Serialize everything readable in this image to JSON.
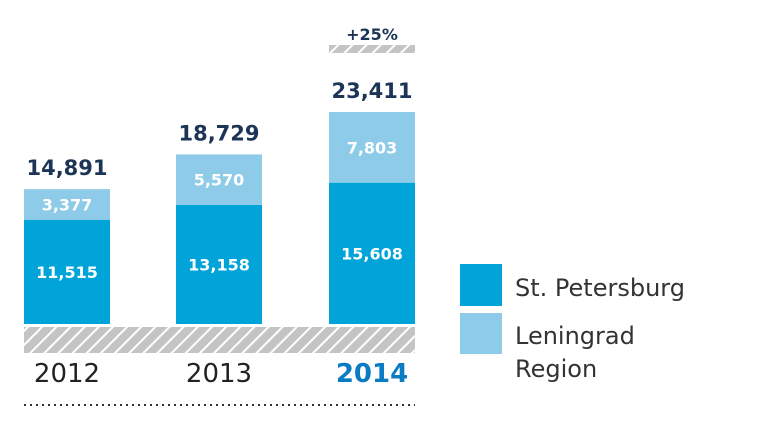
{
  "chart_data": {
    "type": "bar",
    "stacked": true,
    "title": "",
    "xlabel": "",
    "ylabel": "",
    "categories": [
      "2012",
      "2013",
      "2014"
    ],
    "highlight_category": "2014",
    "series": [
      {
        "name": "St. Petersburg",
        "color": "#00a4d8",
        "values": [
          11515,
          13158,
          15608
        ],
        "labels": [
          "11,515",
          "13,158",
          "15,608"
        ]
      },
      {
        "name": "Leningrad Region",
        "color": "#8dcbe9",
        "values": [
          3377,
          5570,
          7803
        ],
        "labels": [
          "3,377",
          "5,570",
          "7,803"
        ]
      }
    ],
    "totals": [
      14891,
      18729,
      23411
    ],
    "total_labels": [
      "14,891",
      "18,729",
      "23,411"
    ],
    "annotation": {
      "category": "2014",
      "text": "+25%"
    },
    "legend": {
      "position": "right",
      "items": [
        "St. Petersburg",
        "Leningrad",
        "Region"
      ]
    },
    "ylim": [
      0,
      23411
    ],
    "grid": false,
    "colors": {
      "total_text": "#1c3556",
      "highlight_year": "#0a7cc4",
      "hatch": "#c4c4c4"
    }
  }
}
